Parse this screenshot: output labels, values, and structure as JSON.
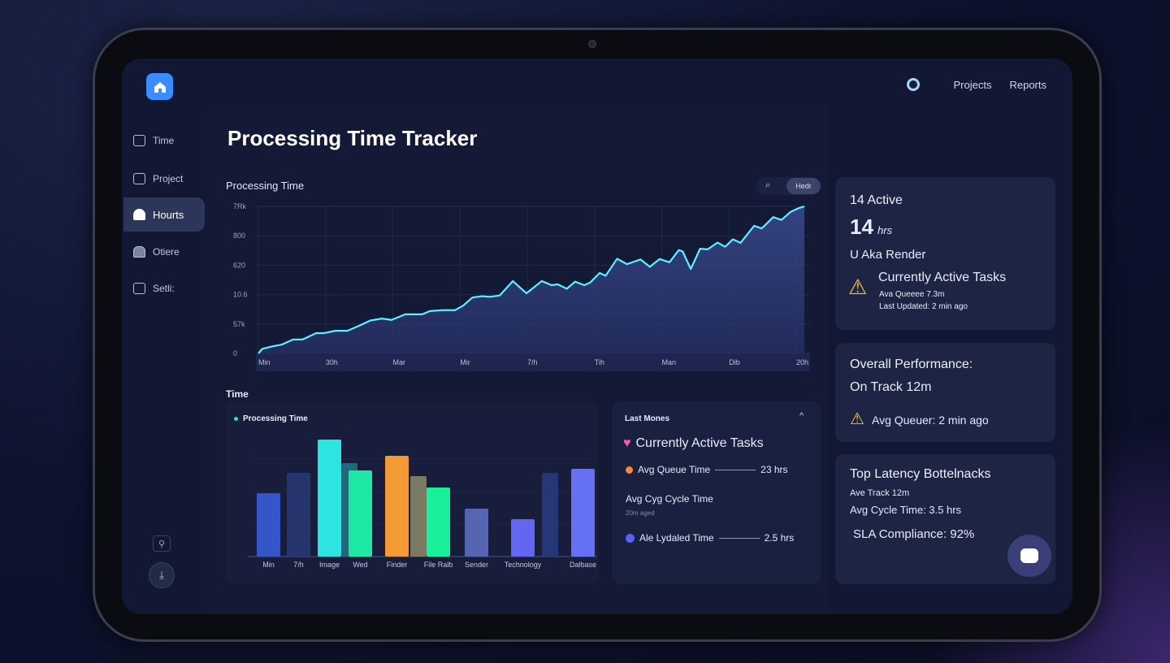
{
  "nav": {
    "links": [
      "Projects",
      "Reports"
    ]
  },
  "sidebar": {
    "items": [
      {
        "label": "Time",
        "icon": "home-icon"
      },
      {
        "label": "Project",
        "icon": "project-icon"
      },
      {
        "label": "Hourts",
        "icon": "lock-icon",
        "active": true
      },
      {
        "label": "Otiere",
        "icon": "user-icon"
      },
      {
        "label": "Setli:",
        "icon": "settings-icon"
      }
    ]
  },
  "page": {
    "title": "Processing Time Tracker"
  },
  "line_panel": {
    "title": "Processing Time",
    "filter_label": "Hedr"
  },
  "bar_section": {
    "heading": "Time",
    "legend": "Processing Time"
  },
  "chart_data": [
    {
      "type": "area",
      "title": "Processing Time",
      "ylim": [
        0,
        100
      ],
      "yticks": [
        "7Rk",
        "800",
        "620",
        "10.6",
        "57k",
        "0"
      ],
      "xticks": [
        "Min",
        "30h",
        "Mar",
        "Mir",
        "7/h",
        "Tih",
        "Man",
        "Dib",
        "20h"
      ],
      "x": [
        0,
        0.7,
        2.8,
        4.2,
        6.4,
        8.1,
        10.6,
        12,
        14.1,
        16.3,
        18.4,
        20.5,
        22.6,
        24.4,
        26.9,
        30,
        31.4,
        33.6,
        36,
        37.5,
        39.2,
        41,
        42.4,
        44.2,
        46.6,
        49.1,
        51.9,
        53.7,
        54.8,
        56.5,
        58,
        59.7,
        60.8,
        62.5,
        63.6,
        65.7,
        67.5,
        70,
        71.7,
        73.5,
        75.3,
        77,
        77.7,
        79.2,
        80.9,
        82.3,
        84.1,
        85.5,
        86.9,
        88.3,
        90.8,
        92.2,
        94.3,
        95.8,
        97.5,
        98.9,
        100
      ],
      "y": [
        0,
        3.1,
        5,
        5.9,
        9.5,
        9.5,
        13.8,
        13.8,
        15.4,
        15.4,
        18.7,
        22.4,
        23.7,
        22.8,
        26.6,
        26.6,
        28.8,
        29.4,
        29.4,
        32.5,
        38,
        38.9,
        38.5,
        39.4,
        49.2,
        40.9,
        49.2,
        46.4,
        47,
        44,
        48.8,
        46.4,
        48.3,
        54.7,
        52.8,
        64.4,
        60.7,
        63.9,
        58.9,
        64.2,
        62,
        70.3,
        69.4,
        57.4,
        71.2,
        70.8,
        75.4,
        72.5,
        77.6,
        75.2,
        86.8,
        85,
        92.7,
        90.8,
        96.3,
        98.7,
        100
      ],
      "color": "#5ef0ff"
    },
    {
      "type": "bar",
      "title": "Processing Time",
      "ylim": [
        0,
        150
      ],
      "bars": [
        {
          "label": "Min",
          "value": 78,
          "color": "#3556c8"
        },
        {
          "label": "7/h",
          "value": 103,
          "color": "#26346e"
        },
        {
          "label": "Image",
          "value": 144,
          "color": "#2de5e0"
        },
        {
          "label": "",
          "value": 115,
          "color": "#1f6a7a"
        },
        {
          "label": "Wed",
          "value": 106,
          "color": "#1de8a4"
        },
        {
          "label": "Finder",
          "value": 124,
          "color": "#f39a34"
        },
        {
          "label": "",
          "value": 99,
          "color": "#7a7a62"
        },
        {
          "label": "File Ralb",
          "value": 85,
          "color": "#18f09a"
        },
        {
          "label": "Sender",
          "value": 59,
          "color": "#5565b0"
        },
        {
          "label": "Technology",
          "value": 46,
          "color": "#6366f0"
        },
        {
          "label": "",
          "value": 103,
          "color": "#253776"
        },
        {
          "label": "Dalbase",
          "value": 108,
          "color": "#6670f2"
        }
      ]
    }
  ],
  "last_moves": {
    "title": "Last Mones",
    "heading": "Currently Active Tasks",
    "rows": [
      {
        "label": "Avg Queue Time",
        "value": "23 hrs",
        "color": "#f28a3c"
      },
      {
        "label": "Avg Cyg Cycle Time",
        "sub": "20m aged"
      },
      {
        "label": "Ale Lydaled Time",
        "value": "2.5 hrs",
        "color": "#5a60f0"
      }
    ]
  },
  "cards": {
    "active": {
      "title": "14 Active",
      "big": "14",
      "unit": "hrs",
      "sub": "U Aka Render",
      "alert": "Currently Active Tasks",
      "line1": "Ava Queeee 7.3m",
      "line2": "Last Updated: 2 min ago"
    },
    "performance": {
      "title": "Overall Performance:",
      "status": "On Track 12m",
      "alert": "Avg Queuer: 2 min ago"
    },
    "latency": {
      "title": "Top Latency Bottelnacks",
      "l1": "Ave Track 12m",
      "l2": "Avg Cycle Time: 3.5 hrs",
      "sla": "SLA Compliance: 92%"
    }
  }
}
